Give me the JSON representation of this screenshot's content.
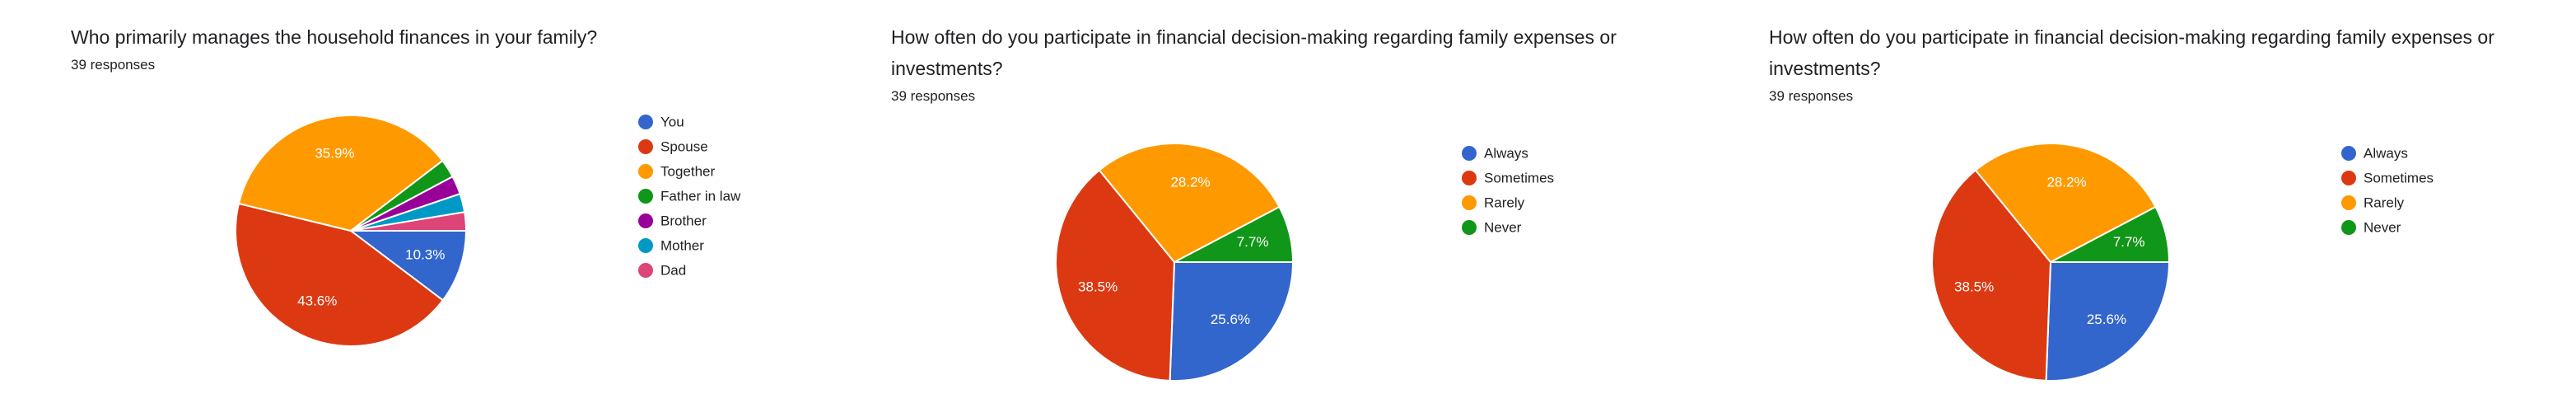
{
  "chart_data": [
    {
      "type": "pie",
      "title": "Who primarily manages the household finances in your family?",
      "subtitle": "39 responses",
      "categories": [
        "You",
        "Spouse",
        "Together",
        "Father in law",
        "Brother",
        "Mother",
        "Dad"
      ],
      "values": [
        10.3,
        43.6,
        35.9,
        2.6,
        2.6,
        2.6,
        2.6
      ],
      "value_labels": [
        "10.3%",
        "43.6%",
        "35.9%",
        null,
        null,
        null,
        null
      ],
      "colors": [
        "#3366cc",
        "#dc3912",
        "#ff9900",
        "#109618",
        "#990099",
        "#0099c6",
        "#dd4477"
      ]
    },
    {
      "type": "pie",
      "title": "How often do you participate in financial decision-making regarding family expenses or investments?",
      "subtitle": "39 responses",
      "categories": [
        "Always",
        "Sometimes",
        "Rarely",
        "Never"
      ],
      "values": [
        25.6,
        38.5,
        28.2,
        7.7
      ],
      "value_labels": [
        "25.6%",
        "38.5%",
        "28.2%",
        "7.7%"
      ],
      "colors": [
        "#3366cc",
        "#dc3912",
        "#ff9900",
        "#109618"
      ]
    },
    {
      "type": "pie",
      "title": "How often do you participate in financial decision-making regarding family expenses or investments?",
      "subtitle": "39 responses",
      "categories": [
        "Always",
        "Sometimes",
        "Rarely",
        "Never"
      ],
      "values": [
        25.6,
        38.5,
        28.2,
        7.7
      ],
      "value_labels": [
        "25.6%",
        "38.5%",
        "28.2%",
        "7.7%"
      ],
      "colors": [
        "#3366cc",
        "#dc3912",
        "#ff9900",
        "#109618"
      ]
    }
  ]
}
